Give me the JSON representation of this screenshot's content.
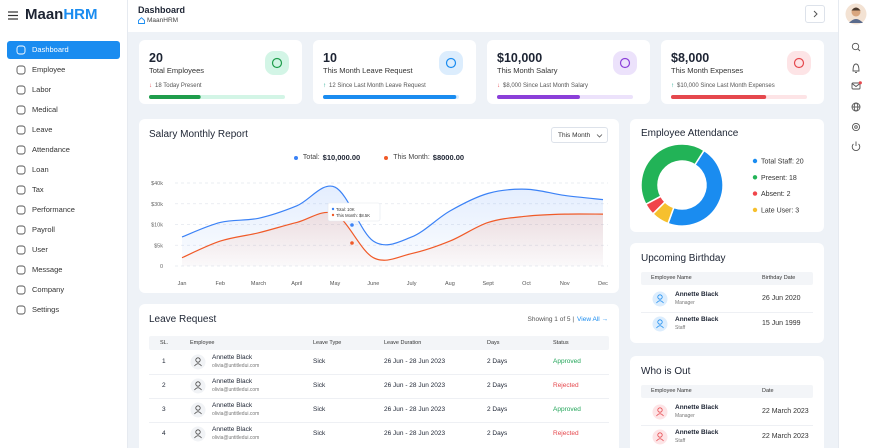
{
  "sidebar": {
    "logo": {
      "brand": "Maan",
      "accent": "HRM"
    },
    "menu": [
      "Dashboard",
      "Employee",
      "Labor",
      "Medical",
      "Leave",
      "Attendance",
      "Loan",
      "Tax",
      "Performance",
      "Payroll",
      "User",
      "Message",
      "Company",
      "Settings"
    ],
    "active": 0
  },
  "header": {
    "title": "Dashboard",
    "breadcrumb": "MaanHRM"
  },
  "arrow_colors": {
    "↓": "#e5484d",
    "↑": "#14a38b"
  },
  "stats": [
    {
      "value": "20",
      "label": "Total Employees",
      "arrow": "↓",
      "note": "18 Today Present",
      "progress": 38,
      "color": "#1f9d4c",
      "tint": "#d3f5e6"
    },
    {
      "value": "10",
      "label": "This Month Leave Request",
      "arrow": "↑",
      "note": "12 Since Last Month Leave Request",
      "progress": 98,
      "color": "#1a8cf0",
      "tint": "#dcedfd"
    },
    {
      "value": "$10,000",
      "label": "This Month Salary",
      "arrow": "↓",
      "note": "$8,000 Since Last Month Salary",
      "progress": 61,
      "color": "#8b3fd9",
      "tint": "#ece2fb"
    },
    {
      "value": "$8,000",
      "label": "This Month Expenses",
      "arrow": "↑",
      "note": "$10,000 Since Last Month Expenses",
      "progress": 70,
      "color": "#e5484d",
      "tint": "#fde4e6"
    }
  ],
  "salary_chart": {
    "type": "line",
    "title": "Salary Monthly Report",
    "period": "This Month",
    "categories": [
      "Jan",
      "Feb",
      "March",
      "April",
      "May",
      "June",
      "July",
      "Aug",
      "Sept",
      "Oct",
      "Nov",
      "Dec"
    ],
    "series": [
      {
        "name": "Total:",
        "amount": "$10,000.00",
        "color": "#3b82f6",
        "values": [
          7,
          12,
          16,
          28,
          38,
          6,
          7,
          23,
          35,
          37,
          34,
          32
        ]
      },
      {
        "name": "This Month:",
        "amount": "$8000.00",
        "color": "#f05a28",
        "values": [
          2,
          6,
          8,
          12,
          20,
          2,
          3,
          6,
          12,
          18,
          20,
          20
        ]
      }
    ],
    "ylim": [
      0,
      40
    ],
    "yticks": [
      {
        "value": 40,
        "label": "$40k"
      },
      {
        "value": 30,
        "label": "$30k"
      },
      {
        "value": 10,
        "label": "$10k"
      },
      {
        "value": 5,
        "label": "$5k"
      },
      0
    ],
    "grid": true,
    "tooltip": [
      "Total: 10K",
      "This Month: $8.5K"
    ]
  },
  "attendance": {
    "type": "pie",
    "title": "Employee Attendance",
    "labels": [
      "Total Staff: 20",
      "Present: 18",
      "Absent: 2",
      "Late User: 3"
    ],
    "values": [
      20,
      18,
      2,
      3
    ],
    "colors": [
      "#1a8cf0",
      "#22b357",
      "#f0454a",
      "#f6c02e"
    ]
  },
  "birthday": {
    "title": "Upcoming Birthday",
    "columns": [
      "Employee Name",
      "Birthday Date"
    ],
    "rows": [
      [
        "Annette Black",
        "Manager",
        "26 Jun 2020"
      ],
      [
        "Annette Black",
        "Staff",
        "15 Jun 1999"
      ]
    ]
  },
  "who_is_out": {
    "title": "Who is Out",
    "columns": [
      "Employee Name",
      "Date"
    ],
    "rows": [
      [
        "Annette Black",
        "Manager",
        "22 March 2023"
      ],
      [
        "Annette Black",
        "Staff",
        "22 March 2023"
      ]
    ]
  },
  "leave": {
    "title": "Leave Request",
    "showing": "Showing 1 of 5 |",
    "view_all": "View All →",
    "columns": [
      "SL.",
      "Employee",
      "Leave Type",
      "Leave Duration",
      "Days",
      "Status"
    ],
    "rows": [
      [
        1,
        "Annette Black",
        "olivia@untitledui.com",
        "Sick",
        "26 Jun - 28 Jun 2023",
        "2 Days",
        "Approved"
      ],
      [
        2,
        "Annette Black",
        "olivia@untitledui.com",
        "Sick",
        "26 Jun - 28 Jun 2023",
        "2 Days",
        "Rejected"
      ],
      [
        3,
        "Annette Black",
        "olivia@untitledui.com",
        "Sick",
        "26 Jun - 28 Jun 2023",
        "2 Days",
        "Approved"
      ],
      [
        4,
        "Annette Black",
        "olivia@untitledui.com",
        "Sick",
        "26 Jun - 28 Jun 2023",
        "2 Days",
        "Rejected"
      ]
    ],
    "status_colors": {
      "Approved": "#22a559",
      "Rejected": "#e5484d"
    }
  }
}
